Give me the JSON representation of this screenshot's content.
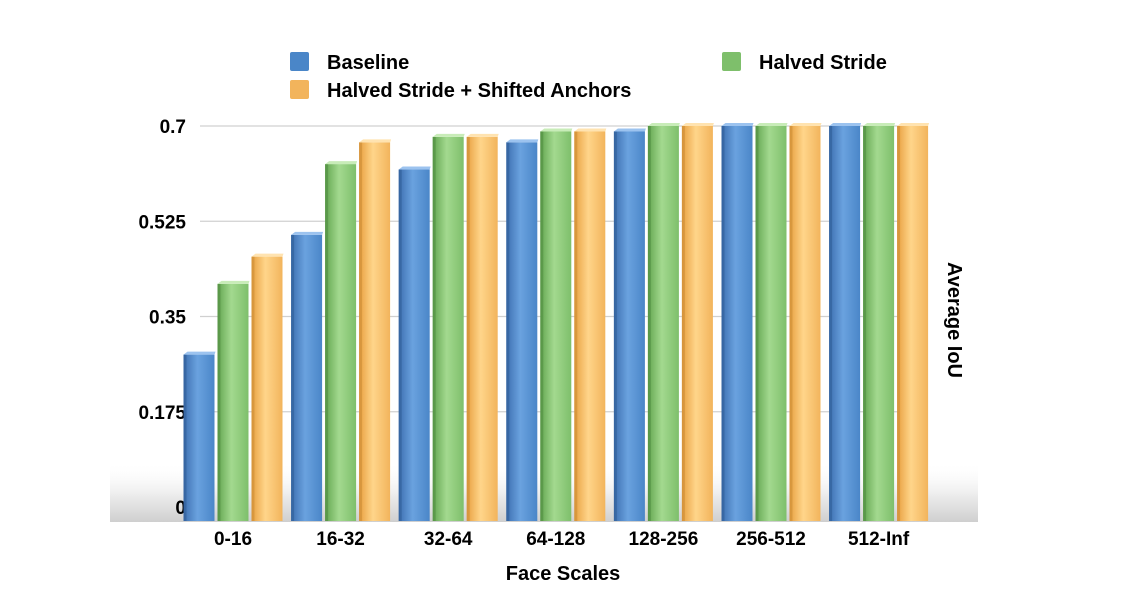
{
  "chart_data": {
    "type": "bar",
    "title": "",
    "xlabel": "Face Scales",
    "ylabel": "Average IoU",
    "ylim": [
      0,
      0.7
    ],
    "yticks": [
      "0",
      "0.175",
      "0.35",
      "0.525",
      "0.7"
    ],
    "grid": "horizontal",
    "legend_position": "top",
    "categories": [
      "0-16",
      "16-32",
      "32-64",
      "64-128",
      "128-256",
      "256-512",
      "512-Inf"
    ],
    "series": [
      {
        "name": "Baseline",
        "color": "#4a86c8",
        "values": [
          0.28,
          0.5,
          0.62,
          0.67,
          0.69,
          0.7,
          0.7
        ]
      },
      {
        "name": "Halved Stride",
        "color": "#7ebf6b",
        "values": [
          0.41,
          0.63,
          0.68,
          0.69,
          0.7,
          0.7,
          0.7
        ]
      },
      {
        "name": "Halved Stride + Shifted Anchors",
        "color": "#f2b45c",
        "values": [
          0.46,
          0.67,
          0.68,
          0.69,
          0.7,
          0.7,
          0.7
        ]
      }
    ]
  }
}
